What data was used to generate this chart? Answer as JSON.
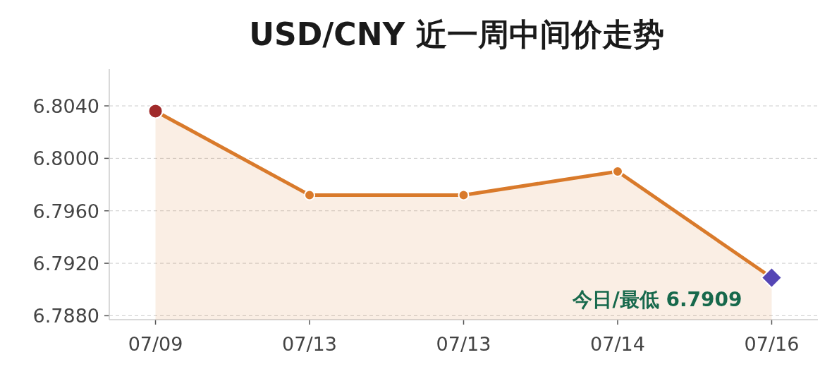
{
  "chart_data": {
    "type": "area",
    "title": "USD/CNY 近一周中间价走势",
    "categories": [
      "07/09",
      "07/13",
      "07/13",
      "07/14",
      "07/16"
    ],
    "series": [
      {
        "type": "area",
        "color": "#d97a2b",
        "marker": "circle",
        "values": [
          6.8036,
          6.7972,
          6.7972,
          6.799,
          6.7909
        ]
      },
      {
        "type": "scatter",
        "color": "#a02a2a",
        "marker": "circle",
        "values": [
          6.8036,
          null,
          null,
          null,
          null
        ]
      },
      {
        "type": "scatter",
        "color": "#5546b5",
        "marker": "diamond",
        "values": [
          null,
          null,
          null,
          null,
          6.7909
        ]
      }
    ],
    "ylim": [
      6.7877,
      6.8068
    ],
    "yticks": [
      {
        "value": 6.788,
        "label": "6.7880"
      },
      {
        "value": 6.792,
        "label": "6.7920"
      },
      {
        "value": 6.796,
        "label": "6.7960"
      },
      {
        "value": 6.8,
        "label": "6.8000"
      },
      {
        "value": 6.804,
        "label": "6.8040"
      }
    ],
    "grid": "y",
    "line_style": "solid",
    "annotations": [
      {
        "text": "今日/最低 6.7909",
        "x": "07/16",
        "y": 6.7909
      }
    ]
  }
}
